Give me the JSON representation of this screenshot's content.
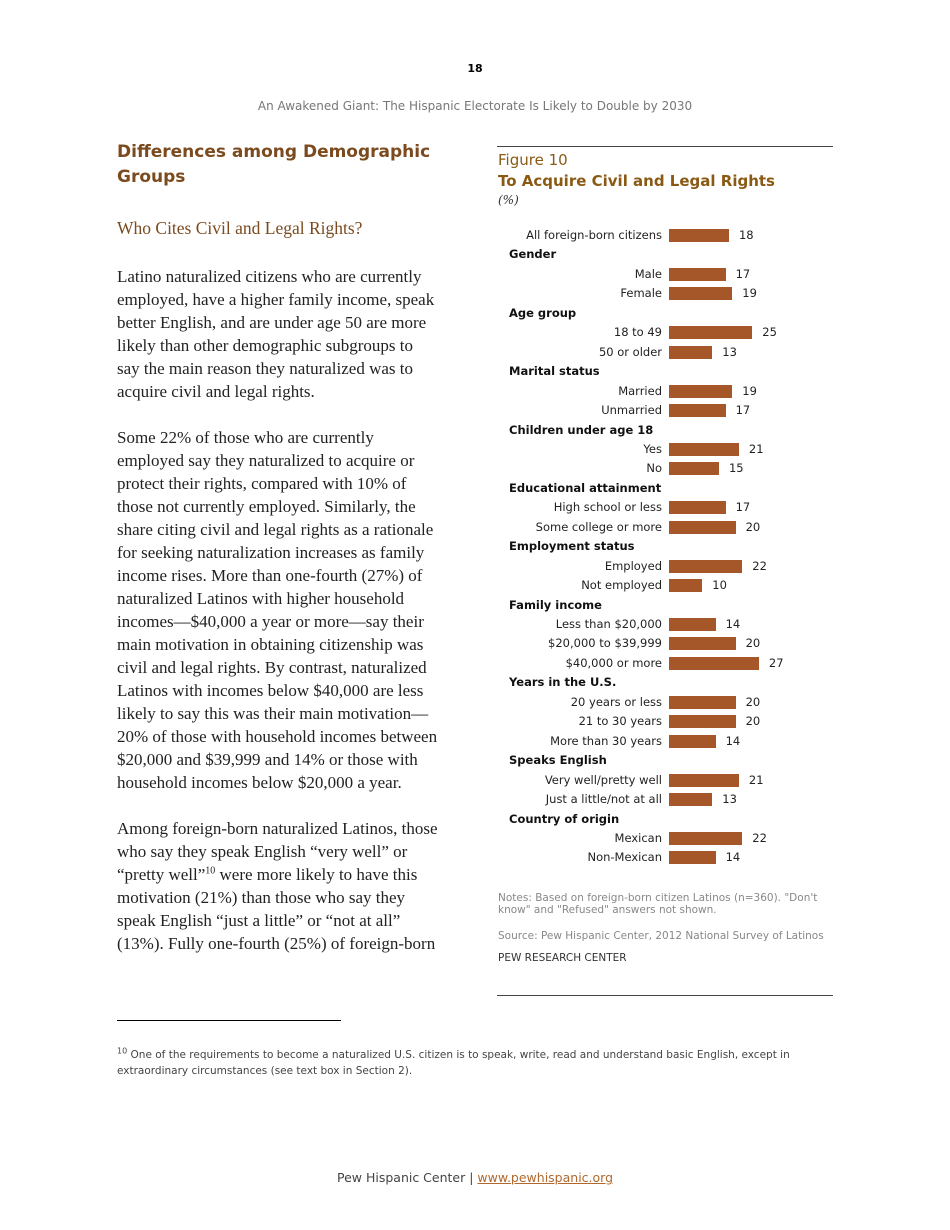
{
  "page_number": "18",
  "running_head": "An Awakened Giant: The Hispanic Electorate Is Likely to Double by 2030",
  "section_heading": "Differences among Demographic Groups",
  "subheading": "Who Cites Civil and Legal Rights?",
  "paragraphs": [
    [
      "Latino naturalized citizens who are currently",
      "employed, have a higher family income, speak",
      "better English, and are under age 50 are more",
      "likely than other demographic subgroups to",
      "say the main reason they naturalized was to",
      "acquire civil and legal rights."
    ],
    [
      "Some 22% of those who are currently",
      "employed say they naturalized to acquire or",
      "protect their rights, compared with 10% of",
      "those not currently employed. Similarly, the",
      "share citing civil and legal rights as a rationale",
      "for seeking naturalization increases as family",
      "income rises. More than one-fourth (27%) of",
      "naturalized Latinos with higher household",
      "incomes—$40,000 a year or more—say their",
      "main motivation in obtaining citizenship was",
      "civil and legal rights. By contrast, naturalized",
      "Latinos with incomes below $40,000 are less",
      "likely to say this was their main motivation—",
      "20% of those with household incomes between",
      "$20,000 and $39,999 and 14% or those with",
      "household incomes below $20,000 a year."
    ],
    [
      "Among foreign-born naturalized Latinos, those",
      "who say they speak English “very well” or",
      "“pretty well”|10| were more likely to have this",
      "motivation (21%) than those who say they",
      "speak English “just a little” or “not at all”",
      "(13%). Fully one-fourth (25%) of foreign-born"
    ]
  ],
  "figure": {
    "number": "Figure 10",
    "title": "To Acquire Civil and Legal Rights",
    "unit": "(%)",
    "notes": "Notes: Based on foreign-born citizen Latinos (n=360). \"Don't know\" and \"Refused\" answers not shown.",
    "source": "Source: Pew Hispanic Center, 2012 National Survey of Latinos",
    "organization": "PEW RESEARCH CENTER"
  },
  "chart_data": {
    "type": "bar",
    "orientation": "horizontal",
    "title": "To Acquire Civil and Legal Rights",
    "unit": "(%)",
    "bar_color": "#a5572a",
    "rows": [
      {
        "label": "All foreign-born citizens",
        "value": 18
      },
      {
        "header": "Gender"
      },
      {
        "label": "Male",
        "value": 17
      },
      {
        "label": "Female",
        "value": 19
      },
      {
        "header": "Age group"
      },
      {
        "label": "18 to 49",
        "value": 25
      },
      {
        "label": "50 or older",
        "value": 13
      },
      {
        "header": "Marital status"
      },
      {
        "label": "Married",
        "value": 19
      },
      {
        "label": "Unmarried",
        "value": 17
      },
      {
        "header": "Children under age 18"
      },
      {
        "label": "Yes",
        "value": 21
      },
      {
        "label": "No",
        "value": 15
      },
      {
        "header": "Educational attainment"
      },
      {
        "label": "High school or less",
        "value": 17
      },
      {
        "label": "Some college or more",
        "value": 20
      },
      {
        "header": "Employment status"
      },
      {
        "label": "Employed",
        "value": 22
      },
      {
        "label": "Not employed",
        "value": 10
      },
      {
        "header": "Family income"
      },
      {
        "label": "Less than $20,000",
        "value": 14
      },
      {
        "label": "$20,000 to $39,999",
        "value": 20
      },
      {
        "label": "$40,000 or more",
        "value": 27
      },
      {
        "header": "Years in the U.S."
      },
      {
        "label": "20 years or less",
        "value": 20
      },
      {
        "label": "21 to 30 years",
        "value": 20
      },
      {
        "label": "More than 30 years",
        "value": 14
      },
      {
        "header": "Speaks English"
      },
      {
        "label": "Very well/pretty well",
        "value": 21
      },
      {
        "label": "Just a little/not at all",
        "value": 13
      },
      {
        "header": "Country of origin"
      },
      {
        "label": "Mexican",
        "value": 22
      },
      {
        "label": "Non-Mexican",
        "value": 14
      }
    ]
  },
  "footnote": {
    "marker": "10",
    "text": " One of the requirements to become a naturalized U.S. citizen is to speak, write, read and understand basic English, except in extraordinary circumstances (see text box in Section 2)."
  },
  "footer": {
    "text": "Pew Hispanic Center | ",
    "link": "www.pewhispanic.org"
  }
}
